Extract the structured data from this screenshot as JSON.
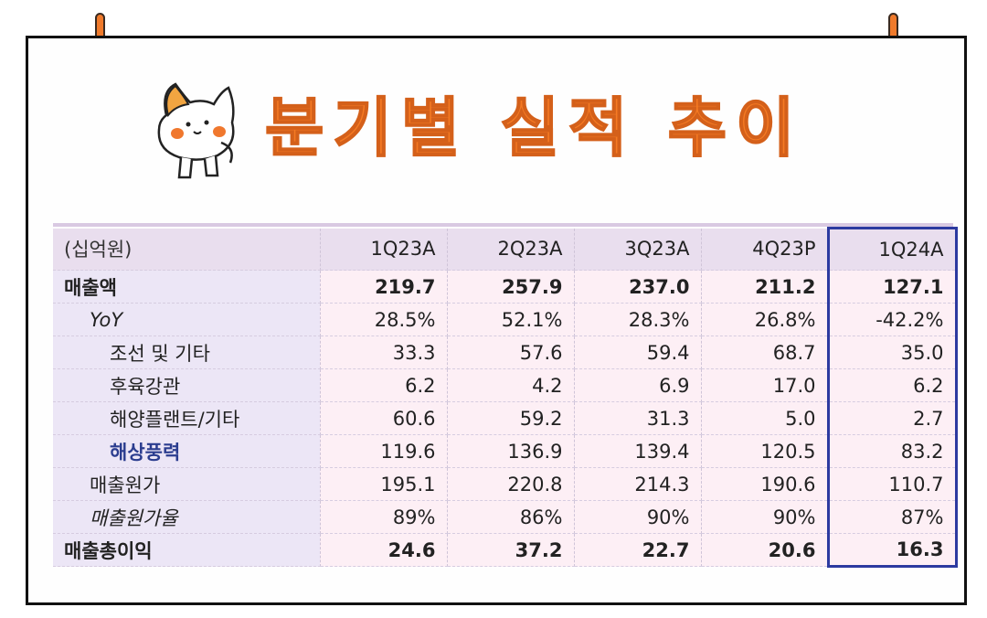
{
  "title": "분기별 실적 추이",
  "table": {
    "unit_label": "(십억원)",
    "columns": [
      "1Q23A",
      "2Q23A",
      "3Q23A",
      "4Q23P",
      "1Q24A"
    ],
    "rows": [
      {
        "label": "매출액",
        "values": [
          "219.7",
          "257.9",
          "237.0",
          "211.2",
          "127.1"
        ]
      },
      {
        "label": "YoY",
        "values": [
          "28.5%",
          "52.1%",
          "28.3%",
          "26.8%",
          "-42.2%"
        ]
      },
      {
        "label": "조선 및 기타",
        "values": [
          "33.3",
          "57.6",
          "59.4",
          "68.7",
          "35.0"
        ]
      },
      {
        "label": "후육강관",
        "values": [
          "6.2",
          "4.2",
          "6.9",
          "17.0",
          "6.2"
        ]
      },
      {
        "label": "해양플랜트/기타",
        "values": [
          "60.6",
          "59.2",
          "31.3",
          "5.0",
          "2.7"
        ]
      },
      {
        "label": "해상풍력",
        "values": [
          "119.6",
          "136.9",
          "139.4",
          "120.5",
          "83.2"
        ]
      },
      {
        "label": "매출원가",
        "values": [
          "195.1",
          "220.8",
          "214.3",
          "190.6",
          "110.7"
        ]
      },
      {
        "label": "매출원가율",
        "values": [
          "89%",
          "86%",
          "90%",
          "90%",
          "87%"
        ]
      },
      {
        "label": "매출총이익",
        "values": [
          "24.6",
          "37.2",
          "22.7",
          "20.6",
          "16.3"
        ]
      }
    ]
  },
  "colors": {
    "title": "#f57a23",
    "highlight_border": "#2c3aa0",
    "highlight_label": "#2b3d8f"
  }
}
